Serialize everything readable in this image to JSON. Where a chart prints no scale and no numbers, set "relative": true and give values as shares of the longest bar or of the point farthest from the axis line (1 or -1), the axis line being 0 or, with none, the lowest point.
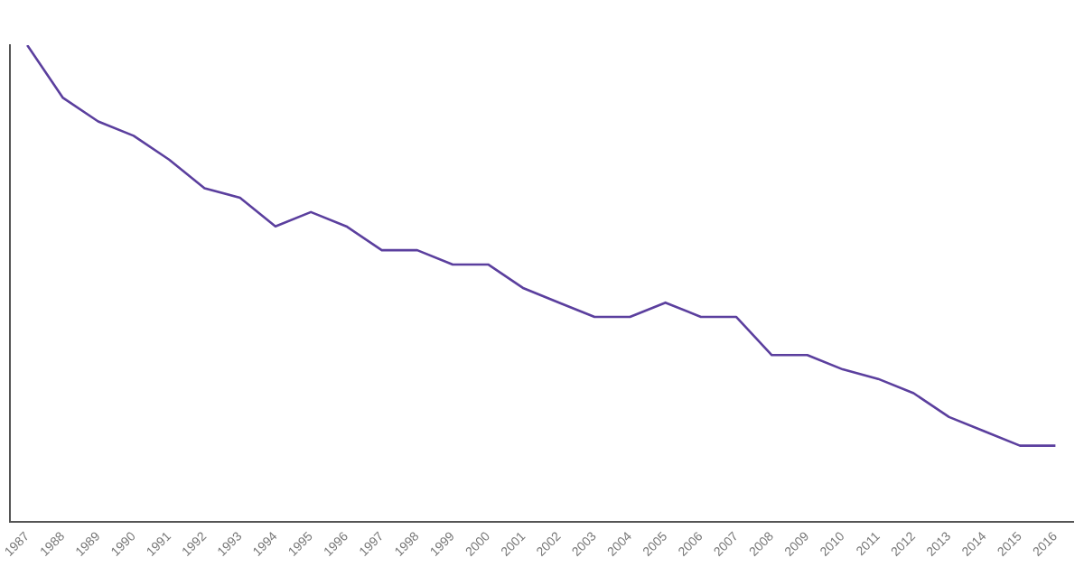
{
  "chart_data": {
    "type": "line",
    "relative": true,
    "categories": [
      "1987",
      "1988",
      "1989",
      "1990",
      "1991",
      "1992",
      "1993",
      "1994",
      "1995",
      "1996",
      "1997",
      "1998",
      "1999",
      "2000",
      "2001",
      "2002",
      "2003",
      "2004",
      "2005",
      "2006",
      "2007",
      "2008",
      "2009",
      "2010",
      "2011",
      "2012",
      "2013",
      "2014",
      "2015",
      "2016"
    ],
    "series": [
      {
        "color": "#5b3f9e",
        "values": [
          1,
          0.89,
          0.84,
          0.81,
          0.76,
          0.7,
          0.68,
          0.62,
          0.65,
          0.62,
          0.57,
          0.57,
          0.54,
          0.54,
          0.49,
          0.46,
          0.43,
          0.43,
          0.46,
          0.43,
          0.43,
          0.35,
          0.35,
          0.32,
          0.3,
          0.27,
          0.22,
          0.19,
          0.16,
          0.16
        ]
      }
    ],
    "grid": false,
    "legend": false,
    "marker": "none",
    "line_style": "solid"
  }
}
